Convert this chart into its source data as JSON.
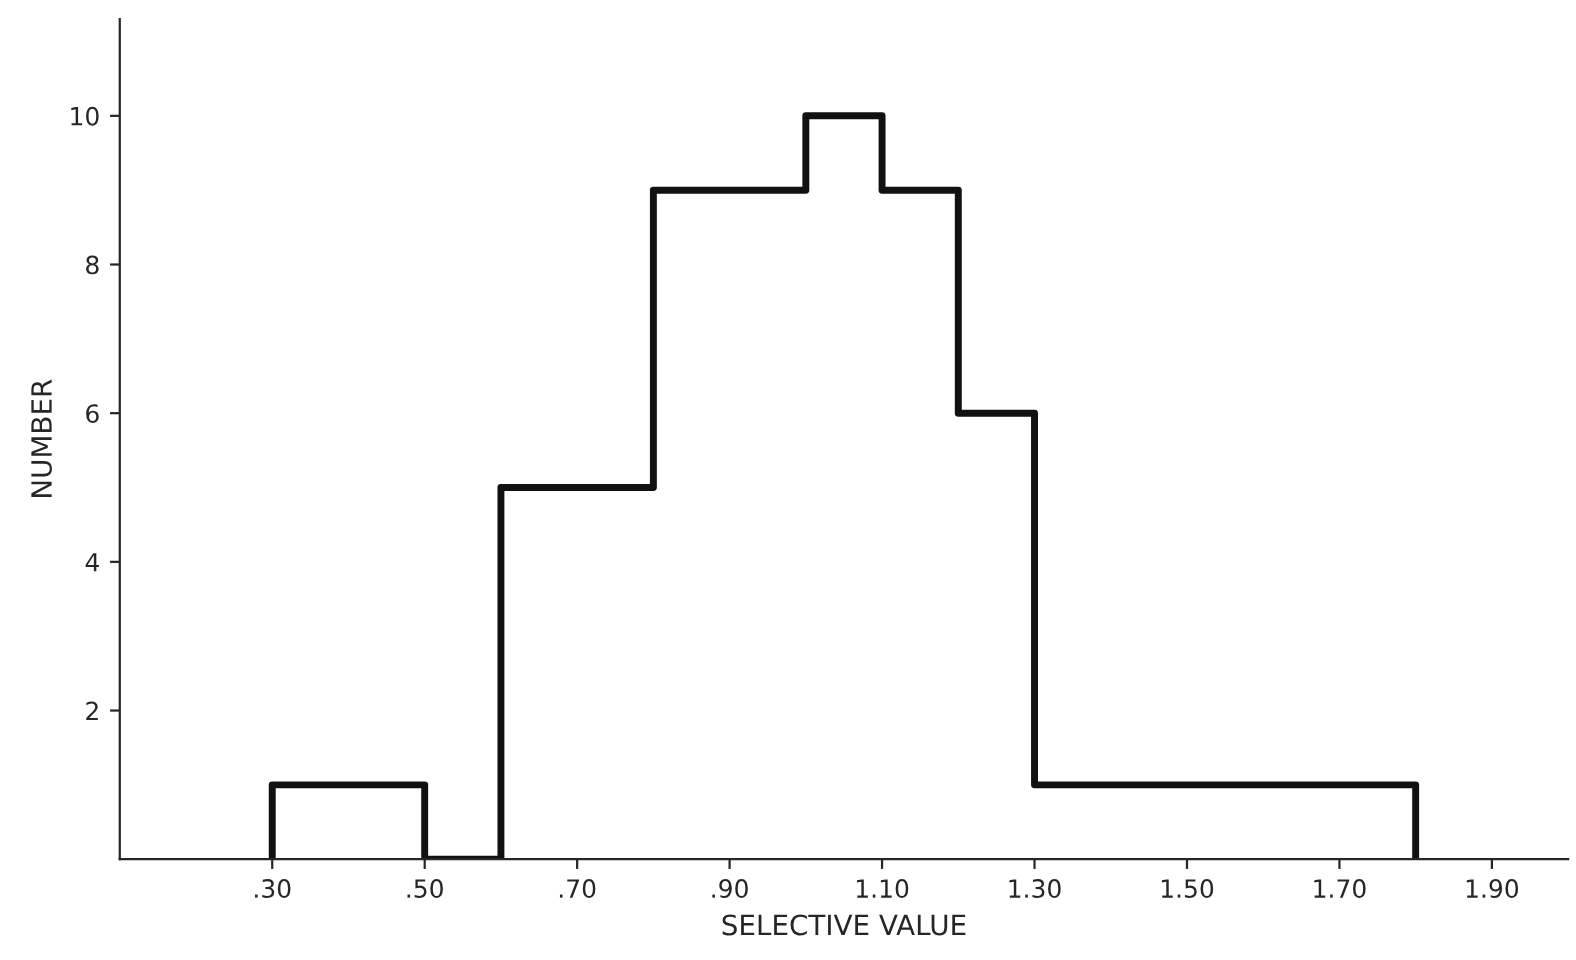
{
  "chart_data": {
    "type": "histogram",
    "xlabel": "SELECTIVE VALUE",
    "ylabel": "NUMBER",
    "bins": [
      0.3,
      0.5,
      0.6,
      0.8,
      1.0,
      1.1,
      1.2,
      1.3,
      1.8
    ],
    "values": [
      1,
      0,
      5,
      9,
      10,
      9,
      6,
      1
    ],
    "color": "#111111",
    "xlim": [
      0.1,
      2.0
    ],
    "ylim": [
      0,
      11.3
    ],
    "xticks": [
      {
        "value": 0.3,
        "label": ".30"
      },
      {
        "value": 0.5,
        "label": ".50"
      },
      {
        "value": 0.7,
        "label": ".70"
      },
      {
        "value": 0.9,
        "label": ".90"
      },
      {
        "value": 1.1,
        "label": "1.10"
      },
      {
        "value": 1.3,
        "label": "1.30"
      },
      {
        "value": 1.5,
        "label": "1.50"
      },
      {
        "value": 1.7,
        "label": "1.70"
      },
      {
        "value": 1.9,
        "label": "1.90"
      }
    ],
    "yticks": [
      2,
      4,
      6,
      8,
      10
    ]
  }
}
